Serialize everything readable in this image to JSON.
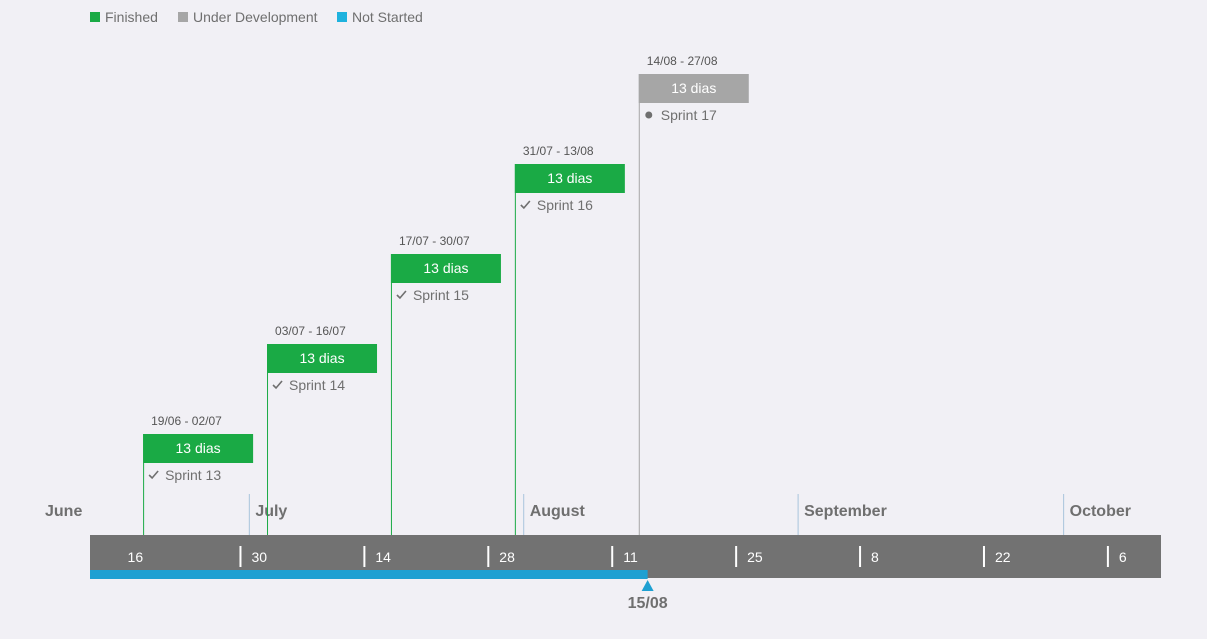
{
  "legend": [
    {
      "label": "Finished",
      "color": "#1aaa45"
    },
    {
      "label": "Under Development",
      "color": "#a6a6a6"
    },
    {
      "label": "Not Started",
      "color": "#1eb2de"
    }
  ],
  "colors": {
    "axis": "#727272",
    "progress": "#1ea0d2",
    "monthLine": "#a8c4dc",
    "text": "#6f6f6f"
  },
  "chart_data": {
    "type": "gantt",
    "x_start": "2023-06-13",
    "x_end": "2023-10-12",
    "months": [
      {
        "label": "June",
        "date": "2023-06-01"
      },
      {
        "label": "July",
        "date": "2023-07-01"
      },
      {
        "label": "August",
        "date": "2023-08-01"
      },
      {
        "label": "September",
        "date": "2023-09-01"
      },
      {
        "label": "October",
        "date": "2023-10-01"
      }
    ],
    "ticks": [
      {
        "label": "16",
        "date": "2023-06-16"
      },
      {
        "label": "30",
        "date": "2023-06-30"
      },
      {
        "label": "14",
        "date": "2023-07-14"
      },
      {
        "label": "28",
        "date": "2023-07-28"
      },
      {
        "label": "11",
        "date": "2023-08-11"
      },
      {
        "label": "25",
        "date": "2023-08-25"
      },
      {
        "label": "8",
        "date": "2023-09-08"
      },
      {
        "label": "22",
        "date": "2023-09-22"
      },
      {
        "label": "6",
        "date": "2023-10-06"
      }
    ],
    "tasks": [
      {
        "name": "Sprint 13",
        "range": "19/06 - 02/07",
        "duration": "13 dias",
        "start": "2023-06-19",
        "end": "2023-07-02",
        "status": "Finished"
      },
      {
        "name": "Sprint 14",
        "range": "03/07 - 16/07",
        "duration": "13 dias",
        "start": "2023-07-03",
        "end": "2023-07-16",
        "status": "Finished"
      },
      {
        "name": "Sprint 15",
        "range": "17/07 - 30/07",
        "duration": "13 dias",
        "start": "2023-07-17",
        "end": "2023-07-30",
        "status": "Finished"
      },
      {
        "name": "Sprint 16",
        "range": "31/07 - 13/08",
        "duration": "13 dias",
        "start": "2023-07-31",
        "end": "2023-08-13",
        "status": "Finished"
      },
      {
        "name": "Sprint 17",
        "range": "14/08 - 27/08",
        "duration": "13 dias",
        "start": "2023-08-14",
        "end": "2023-08-27",
        "status": "Under Development"
      }
    ],
    "today": {
      "label": "15/08",
      "date": "2023-08-15"
    }
  }
}
